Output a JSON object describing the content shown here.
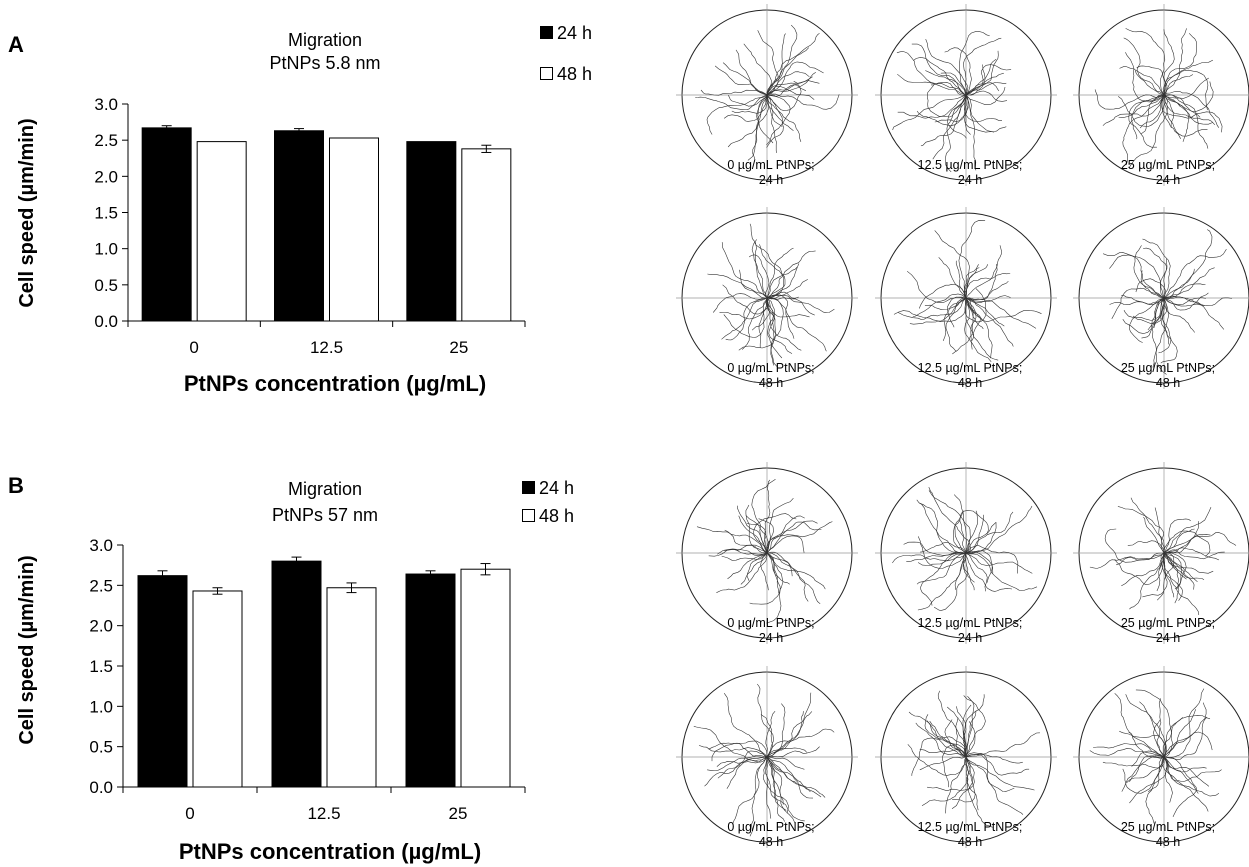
{
  "panels": {
    "a": {
      "letter": "A",
      "title_1": "Migration",
      "title_2": "PtNPs 5.8 nm",
      "ylabel": "Cell speed (µm/min)",
      "xlabel": "PtNPs concentration (µg/mL)",
      "legend": [
        "24 h",
        "48 h"
      ],
      "plots": [
        {
          "line1": "0 µg/mL PtNPs;",
          "line2": "24 h",
          "seed": 11
        },
        {
          "line1": "12.5 µg/mL PtNPs;",
          "line2": "24 h",
          "seed": 23
        },
        {
          "line1": "25 µg/mL PtNPs;",
          "line2": "24 h",
          "seed": 37
        },
        {
          "line1": "0 µg/mL PtNPs;",
          "line2": "48 h",
          "seed": 41
        },
        {
          "line1": "12.5 µg/mL PtNPs;",
          "line2": "48 h",
          "seed": 53
        },
        {
          "line1": "25 µg/mL PtNPs;",
          "line2": "48 h",
          "seed": 67
        }
      ]
    },
    "b": {
      "letter": "B",
      "title_1": "Migration",
      "title_2": "PtNPs 57 nm",
      "ylabel": "Cell speed (µm/min)",
      "xlabel": "PtNPs concentration (µg/mL)",
      "legend": [
        "24 h",
        "48 h"
      ],
      "plots": [
        {
          "line1": "0 µg/mL PtNPs;",
          "line2": "24 h",
          "seed": 71
        },
        {
          "line1": "12.5 µg/mL PtNPs;",
          "line2": "24 h",
          "seed": 83
        },
        {
          "line1": "25 µg/mL PtNPs;",
          "line2": "24 h",
          "seed": 97
        },
        {
          "line1": "0 µg/mL PtNPs;",
          "line2": "48 h",
          "seed": 101
        },
        {
          "line1": "12.5 µg/mL PtNPs;",
          "line2": "48 h",
          "seed": 113
        },
        {
          "line1": "25 µg/mL PtNPs;",
          "line2": "48 h",
          "seed": 127
        }
      ]
    }
  },
  "chart_data": [
    {
      "type": "bar",
      "title": "Migration PtNPs 5.8 nm",
      "xlabel": "PtNPs concentration (µg/mL)",
      "ylabel": "Cell speed (µm/min)",
      "categories": [
        "0",
        "12.5",
        "25"
      ],
      "ylim": [
        0,
        3.0
      ],
      "yticks": [
        "0.0",
        "0.5",
        "1.0",
        "1.5",
        "2.0",
        "2.5",
        "3.0"
      ],
      "legend_position": "top-right",
      "series": [
        {
          "name": "24 h",
          "color": "#000000",
          "values": [
            2.67,
            2.63,
            2.48
          ],
          "errors": [
            0.03,
            0.03,
            0.0
          ]
        },
        {
          "name": "48 h",
          "color": "#ffffff",
          "values": [
            2.48,
            2.53,
            2.38
          ],
          "errors": [
            0.0,
            0.0,
            0.05
          ]
        }
      ]
    },
    {
      "type": "bar",
      "title": "Migration PtNPs 57 nm",
      "xlabel": "PtNPs concentration (µg/mL)",
      "ylabel": "Cell speed (µm/min)",
      "categories": [
        "0",
        "12.5",
        "25"
      ],
      "ylim": [
        0,
        3.0
      ],
      "yticks": [
        "0.0",
        "0.5",
        "1.0",
        "1.5",
        "2.0",
        "2.5",
        "3.0"
      ],
      "legend_position": "top-right",
      "series": [
        {
          "name": "24 h",
          "color": "#000000",
          "values": [
            2.62,
            2.8,
            2.64
          ],
          "errors": [
            0.06,
            0.05,
            0.04
          ]
        },
        {
          "name": "48 h",
          "color": "#ffffff",
          "values": [
            2.43,
            2.47,
            2.7
          ],
          "errors": [
            0.04,
            0.06,
            0.07
          ]
        }
      ]
    }
  ]
}
